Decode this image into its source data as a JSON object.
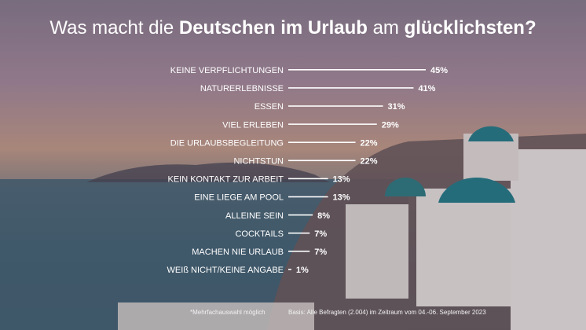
{
  "title": {
    "part1": "Was macht die ",
    "part2": "Deutschen im Urlaub",
    "part3": " am ",
    "part4": "glücklichsten?"
  },
  "chart_data": {
    "type": "bar",
    "orientation": "horizontal",
    "categories": [
      "KEINE VERPFLICHTUNGEN",
      "NATURERLEBNISSE",
      "ESSEN",
      "VIEL ERLEBEN",
      "DIE URLAUBSBEGLEITUNG",
      "NICHTSTUN",
      "KEIN KONTAKT ZUR ARBEIT",
      "EINE LIEGE AM POOL",
      "ALLEINE SEIN",
      "COCKTAILS",
      "MACHEN NIE URLAUB",
      "WEIß NICHT/KEINE ANGABE"
    ],
    "values": [
      45,
      41,
      31,
      29,
      22,
      22,
      13,
      13,
      8,
      7,
      7,
      1
    ],
    "value_labels": [
      "45%",
      "41%",
      "31%",
      "29%",
      "22%",
      "22%",
      "13%",
      "13%",
      "8%",
      "7%",
      "7%",
      "1%"
    ],
    "unit": "%"
  },
  "footnotes": {
    "left": "*Mehrfachauswahl möglich",
    "right": "Basis: Alle Befragten (2.004) im Zeitraum vom 04.-06. September 2023"
  },
  "colors": {
    "text": "#ffffff",
    "bar": "#ffffff"
  }
}
